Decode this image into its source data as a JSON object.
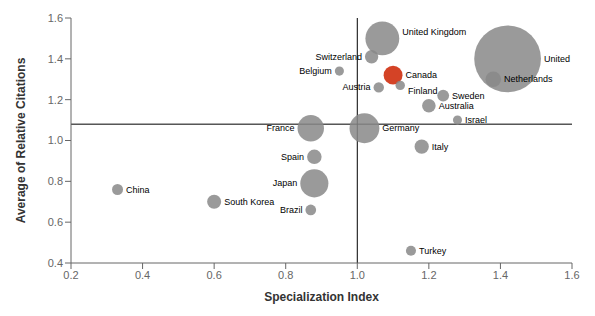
{
  "chart_data": {
    "type": "scatter",
    "xlabel": "Specialization Index",
    "ylabel": "Average of Relative Citations",
    "labels": [
      "United States",
      "United Kingdom",
      "Germany",
      "Canada",
      "France",
      "Japan",
      "Netherlands",
      "Switzerland",
      "Australia",
      "Italy",
      "Sweden",
      "Spain",
      "Belgium",
      "Austria",
      "Finland",
      "Israel",
      "South Korea",
      "China",
      "Brazil",
      "Turkey"
    ],
    "x": [
      1.42,
      1.07,
      1.02,
      1.1,
      0.87,
      0.88,
      1.38,
      1.04,
      1.2,
      1.18,
      1.24,
      0.88,
      0.95,
      1.06,
      1.12,
      1.28,
      0.6,
      0.33,
      0.87,
      1.15
    ],
    "y": [
      1.4,
      1.5,
      1.06,
      1.32,
      1.06,
      0.79,
      1.3,
      1.41,
      1.17,
      0.97,
      1.22,
      0.92,
      1.34,
      1.26,
      1.27,
      1.1,
      0.7,
      0.76,
      0.66,
      0.46
    ],
    "sizes": [
      3500,
      900,
      700,
      280,
      550,
      620,
      190,
      140,
      145,
      160,
      110,
      165,
      65,
      85,
      70,
      65,
      155,
      95,
      90,
      80
    ],
    "colors": [
      "#888888",
      "#888888",
      "#888888",
      "#cc2200",
      "#888888",
      "#888888",
      "#888888",
      "#888888",
      "#888888",
      "#888888",
      "#888888",
      "#888888",
      "#888888",
      "#888888",
      "#888888",
      "#888888",
      "#888888",
      "#888888",
      "#888888",
      "#888888"
    ],
    "hline_y": 1.08,
    "vline_x": 1.0,
    "xlim": [
      0.2,
      1.6
    ],
    "ylim": [
      0.4,
      1.6
    ],
    "xticks": [
      0.2,
      0.4,
      0.6,
      0.8,
      {
        "value": 1.0,
        "label": "1.0"
      },
      1.2,
      1.4,
      1.6
    ],
    "yticks": [
      0.4,
      0.6,
      0.8,
      {
        "value": 1.0,
        "label": "1.0"
      },
      1.2,
      1.4,
      1.6
    ],
    "grid": false
  }
}
